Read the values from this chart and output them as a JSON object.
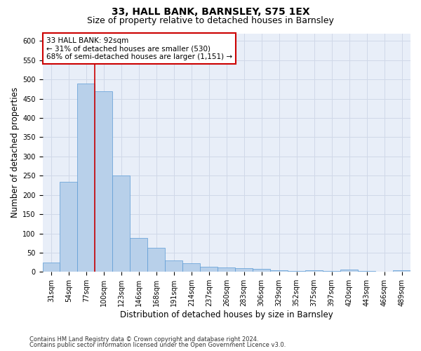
{
  "title": "33, HALL BANK, BARNSLEY, S75 1EX",
  "subtitle": "Size of property relative to detached houses in Barnsley",
  "xlabel": "Distribution of detached houses by size in Barnsley",
  "ylabel": "Number of detached properties",
  "footnote1": "Contains HM Land Registry data © Crown copyright and database right 2024.",
  "footnote2": "Contains public sector information licensed under the Open Government Licence v3.0.",
  "categories": [
    "31sqm",
    "54sqm",
    "77sqm",
    "100sqm",
    "123sqm",
    "146sqm",
    "168sqm",
    "191sqm",
    "214sqm",
    "237sqm",
    "260sqm",
    "283sqm",
    "306sqm",
    "329sqm",
    "352sqm",
    "375sqm",
    "397sqm",
    "420sqm",
    "443sqm",
    "466sqm",
    "489sqm"
  ],
  "values": [
    25,
    235,
    490,
    470,
    250,
    88,
    63,
    30,
    22,
    13,
    11,
    10,
    8,
    5,
    2,
    5,
    2,
    7,
    2,
    1,
    5
  ],
  "bar_color": "#b8d0ea",
  "bar_edge_color": "#5b9bd5",
  "property_line_color": "#cc0000",
  "property_line_x": 2.5,
  "annotation_text": "33 HALL BANK: 92sqm\n← 31% of detached houses are smaller (530)\n68% of semi-detached houses are larger (1,151) →",
  "annotation_box_edgecolor": "#cc0000",
  "ylim_max": 620,
  "yticks": [
    0,
    50,
    100,
    150,
    200,
    250,
    300,
    350,
    400,
    450,
    500,
    550,
    600
  ],
  "grid_color": "#d0d8e8",
  "bg_color": "#e8eef8",
  "title_fontsize": 10,
  "subtitle_fontsize": 9,
  "axis_label_fontsize": 8.5,
  "tick_fontsize": 7,
  "annot_fontsize": 7.5,
  "footnote_fontsize": 6
}
